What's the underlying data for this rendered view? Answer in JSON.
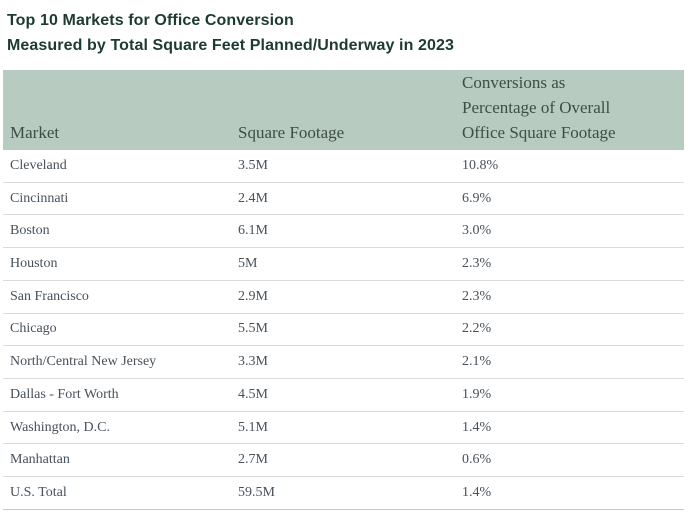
{
  "title": {
    "line1": "Top 10 Markets for Office Conversion",
    "line2": "Measured by Total Square Feet Planned/Underway in 2023"
  },
  "table": {
    "headers": {
      "market": "Market",
      "square_footage": "Square Footage",
      "conversion_pct": "Conversions as\nPercentage of Overall\nOffice Square Footage"
    },
    "rows": [
      {
        "market": "Cleveland",
        "square_footage": "3.5M",
        "conversion_pct": "10.8%"
      },
      {
        "market": "Cincinnati",
        "square_footage": "2.4M",
        "conversion_pct": "6.9%"
      },
      {
        "market": "Boston",
        "square_footage": "6.1M",
        "conversion_pct": "3.0%"
      },
      {
        "market": "Houston",
        "square_footage": "5M",
        "conversion_pct": "2.3%"
      },
      {
        "market": "San Francisco",
        "square_footage": "2.9M",
        "conversion_pct": "2.3%"
      },
      {
        "market": "Chicago",
        "square_footage": "5.5M",
        "conversion_pct": "2.2%"
      },
      {
        "market": "North/Central New Jersey",
        "square_footage": "3.3M",
        "conversion_pct": "2.1%"
      },
      {
        "market": "Dallas - Fort Worth",
        "square_footage": "4.5M",
        "conversion_pct": "1.9%"
      },
      {
        "market": "Washington, D.C.",
        "square_footage": "5.1M",
        "conversion_pct": "1.4%"
      },
      {
        "market": "Manhattan",
        "square_footage": "2.7M",
        "conversion_pct": "0.6%"
      },
      {
        "market": "U.S. Total",
        "square_footage": "59.5M",
        "conversion_pct": "1.4%"
      }
    ]
  },
  "colors": {
    "title_text": "#1d3b2e",
    "header_bg": "#b7cbc0",
    "header_text": "#3f4d48",
    "body_text": "#46515a",
    "row_divider": "#dadcdb",
    "bottom_border": "#c6c9c8"
  },
  "chart_data": {
    "type": "table",
    "title": "Top 10 Markets for Office Conversion",
    "subtitle": "Measured by Total Square Feet Planned/Underway in 2023",
    "columns": [
      "Market",
      "Square Footage",
      "Conversions as Percentage of Overall Office Square Footage"
    ],
    "rows": [
      [
        "Cleveland",
        "3.5M",
        "10.8%"
      ],
      [
        "Cincinnati",
        "2.4M",
        "6.9%"
      ],
      [
        "Boston",
        "6.1M",
        "3.0%"
      ],
      [
        "Houston",
        "5M",
        "2.3%"
      ],
      [
        "San Francisco",
        "2.9M",
        "2.3%"
      ],
      [
        "Chicago",
        "5.5M",
        "2.2%"
      ],
      [
        "North/Central New Jersey",
        "3.3M",
        "2.1%"
      ],
      [
        "Dallas - Fort Worth",
        "4.5M",
        "1.9%"
      ],
      [
        "Washington, D.C.",
        "5.1M",
        "1.4%"
      ],
      [
        "Manhattan",
        "2.7M",
        "0.6%"
      ],
      [
        "U.S. Total",
        "59.5M",
        "1.4%"
      ]
    ],
    "square_footage_millions": [
      3.5,
      2.4,
      6.1,
      5.0,
      2.9,
      5.5,
      3.3,
      4.5,
      5.1,
      2.7,
      59.5
    ],
    "conversion_pct_values": [
      10.8,
      6.9,
      3.0,
      2.3,
      2.3,
      2.2,
      2.1,
      1.9,
      1.4,
      0.6,
      1.4
    ]
  }
}
